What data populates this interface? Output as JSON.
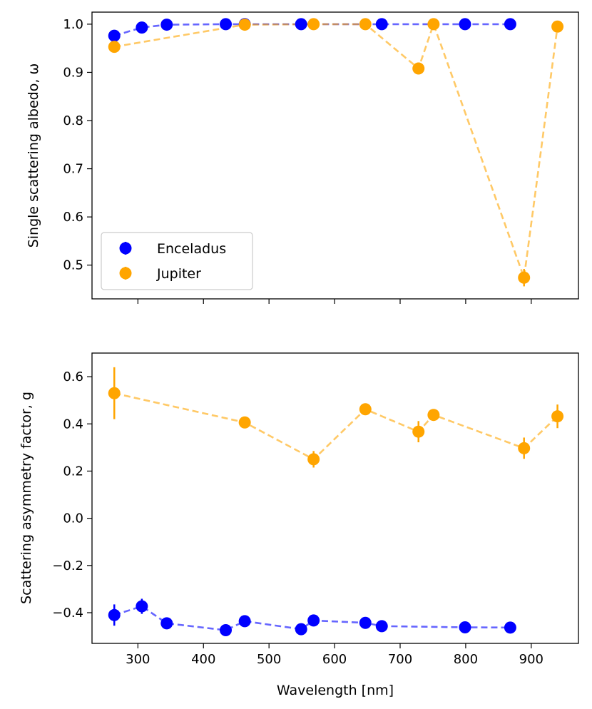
{
  "chart_data": [
    {
      "type": "scatter",
      "title": "",
      "xlabel": "",
      "ylabel": "Single scattering albedo, ω",
      "xlim": [
        230,
        972
      ],
      "ylim": [
        0.43,
        1.025
      ],
      "x_ticks": [
        300,
        400,
        500,
        600,
        700,
        800,
        900
      ],
      "y_ticks": [
        0.5,
        0.6,
        0.7,
        0.8,
        0.9,
        1.0
      ],
      "y_tick_labels": [
        "0.5",
        "0.6",
        "0.7",
        "0.8",
        "0.9",
        "1.0"
      ],
      "show_x_tick_labels": false,
      "grid": false,
      "legend_position": "lower-left",
      "series": [
        {
          "name": "Enceladus",
          "color": "#0000ff",
          "x": [
            264,
            306,
            344,
            434,
            463,
            549,
            672,
            799,
            868
          ],
          "y": [
            0.976,
            0.993,
            0.999,
            1.0,
            1.0,
            1.0,
            1.0,
            1.0,
            1.0
          ],
          "yerr": [
            0.0,
            0.0,
            0.0,
            0.0,
            0.0,
            0.0,
            0.0,
            0.0,
            0.0
          ]
        },
        {
          "name": "Jupiter",
          "color": "#ffa500",
          "x": [
            264,
            463,
            568,
            647,
            728,
            751,
            889,
            940
          ],
          "y": [
            0.953,
            0.999,
            1.0,
            1.0,
            0.908,
            1.0,
            0.474,
            0.995
          ],
          "yerr": [
            0.0,
            0.0,
            0.0,
            0.0,
            0.0,
            0.0,
            0.018,
            0.0
          ]
        }
      ]
    },
    {
      "type": "scatter",
      "title": "",
      "xlabel": "Wavelength [nm]",
      "ylabel": "Scattering asymmetry factor, g",
      "xlim": [
        230,
        972
      ],
      "ylim": [
        -0.53,
        0.7
      ],
      "x_ticks": [
        300,
        400,
        500,
        600,
        700,
        800,
        900
      ],
      "x_tick_labels": [
        "300",
        "400",
        "500",
        "600",
        "700",
        "800",
        "900"
      ],
      "y_ticks": [
        -0.4,
        -0.2,
        0.0,
        0.2,
        0.4,
        0.6
      ],
      "y_tick_labels": [
        "−0.4",
        "−0.2",
        "0.0",
        "0.2",
        "0.4",
        "0.6"
      ],
      "show_x_tick_labels": true,
      "grid": false,
      "series": [
        {
          "name": "Jupiter",
          "color": "#ffa500",
          "x": [
            264,
            463,
            568,
            647,
            728,
            751,
            889,
            940
          ],
          "y": [
            0.53,
            0.406,
            0.25,
            0.462,
            0.367,
            0.438,
            0.297,
            0.432
          ],
          "yerr": [
            0.11,
            0.0,
            0.035,
            0.02,
            0.045,
            0.0,
            0.045,
            0.05
          ]
        },
        {
          "name": "Enceladus",
          "color": "#0000ff",
          "x": [
            264,
            306,
            344,
            434,
            463,
            549,
            568,
            647,
            672,
            799,
            868
          ],
          "y": [
            -0.41,
            -0.373,
            -0.445,
            -0.474,
            -0.436,
            -0.47,
            -0.433,
            -0.443,
            -0.457,
            -0.462,
            -0.463
          ],
          "yerr": [
            0.045,
            0.032,
            0.0,
            0.0,
            0.0,
            0.0,
            0.0,
            0.0,
            0.0,
            0.0,
            0.0
          ]
        }
      ]
    }
  ]
}
